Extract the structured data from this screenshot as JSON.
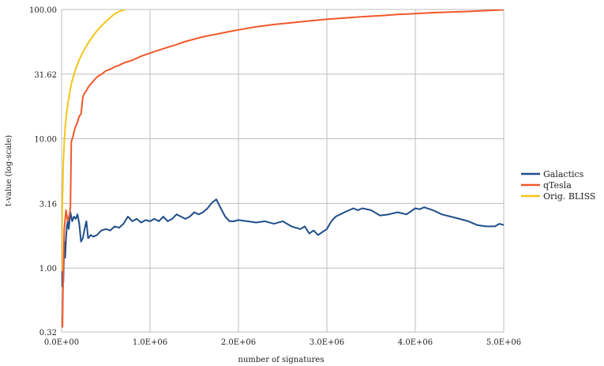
{
  "chart_data": {
    "type": "line",
    "title": "",
    "xlabel": "number of signatures",
    "ylabel": "t-value (log-scale)",
    "xlim": [
      0,
      5000000
    ],
    "ylim": [
      0.32,
      100
    ],
    "yscale": "log",
    "grid": true,
    "legend_position": "right",
    "x_ticks": [
      0,
      1000000,
      2000000,
      3000000,
      4000000,
      5000000
    ],
    "x_tick_labels": [
      "0.0E+00",
      "1.0E+06",
      "2.0E+06",
      "3.0E+06",
      "4.0E+06",
      "5.0E+06"
    ],
    "y_ticks": [
      0.32,
      1.0,
      3.16,
      10.0,
      31.62,
      100.0
    ],
    "y_tick_labels": [
      "0.32",
      "1.00",
      "3.16",
      "10.00",
      "31.62",
      "100.00"
    ],
    "series": [
      {
        "name": "Galactics",
        "color": "#1f4e8c",
        "x": [
          0,
          10000,
          20000,
          30000,
          40000,
          50000,
          60000,
          70000,
          80000,
          100000,
          120000,
          140000,
          160000,
          180000,
          200000,
          220000,
          240000,
          260000,
          280000,
          300000,
          330000,
          360000,
          400000,
          450000,
          500000,
          550000,
          600000,
          650000,
          700000,
          750000,
          800000,
          850000,
          900000,
          950000,
          1000000,
          1050000,
          1100000,
          1150000,
          1200000,
          1250000,
          1300000,
          1350000,
          1400000,
          1450000,
          1500000,
          1550000,
          1600000,
          1650000,
          1700000,
          1750000,
          1800000,
          1850000,
          1900000,
          1950000,
          2000000,
          2100000,
          2200000,
          2300000,
          2400000,
          2500000,
          2600000,
          2700000,
          2750000,
          2800000,
          2850000,
          2900000,
          2950000,
          3000000,
          3050000,
          3100000,
          3200000,
          3300000,
          3350000,
          3400000,
          3500000,
          3600000,
          3700000,
          3800000,
          3900000,
          4000000,
          4050000,
          4100000,
          4200000,
          4300000,
          4400000,
          4500000,
          4600000,
          4700000,
          4800000,
          4900000,
          4950000,
          5000000
        ],
        "y": [
          0.95,
          0.72,
          0.78,
          1.6,
          1.2,
          1.7,
          2.1,
          2.3,
          2.0,
          2.7,
          2.3,
          2.5,
          2.4,
          2.6,
          2.2,
          1.6,
          1.7,
          2.0,
          2.3,
          1.7,
          1.8,
          1.75,
          1.8,
          1.95,
          2.0,
          1.95,
          2.1,
          2.05,
          2.2,
          2.5,
          2.3,
          2.4,
          2.25,
          2.35,
          2.3,
          2.4,
          2.3,
          2.5,
          2.3,
          2.4,
          2.6,
          2.5,
          2.4,
          2.5,
          2.7,
          2.6,
          2.7,
          2.9,
          3.2,
          3.4,
          2.9,
          2.5,
          2.3,
          2.3,
          2.35,
          2.3,
          2.25,
          2.3,
          2.2,
          2.3,
          2.1,
          2.0,
          2.1,
          1.85,
          1.95,
          1.8,
          1.9,
          2.0,
          2.3,
          2.5,
          2.7,
          2.9,
          2.8,
          2.9,
          2.8,
          2.55,
          2.6,
          2.7,
          2.6,
          2.9,
          2.85,
          2.95,
          2.8,
          2.6,
          2.5,
          2.4,
          2.3,
          2.15,
          2.1,
          2.1,
          2.2,
          2.15
        ]
      },
      {
        "name": "qTesla",
        "color": "#f0582a",
        "x": [
          0,
          10000,
          20000,
          30000,
          50000,
          70000,
          90000,
          100000,
          110000,
          130000,
          150000,
          180000,
          200000,
          220000,
          240000,
          260000,
          280000,
          300000,
          330000,
          360000,
          400000,
          450000,
          500000,
          550000,
          600000,
          650000,
          700000,
          750000,
          800000,
          850000,
          900000,
          1000000,
          1100000,
          1200000,
          1300000,
          1400000,
          1500000,
          1600000,
          1700000,
          1800000,
          1900000,
          2000000,
          2200000,
          2400000,
          2600000,
          2800000,
          3000000,
          3200000,
          3400000,
          3600000,
          3800000,
          4000000,
          4200000,
          4400000,
          4600000,
          4800000,
          5000000
        ],
        "y": [
          0.42,
          0.35,
          1.0,
          2.0,
          2.8,
          2.3,
          2.6,
          3.0,
          9.5,
          10.5,
          12.0,
          13.5,
          15.0,
          15.5,
          21.0,
          22.5,
          23.5,
          25.0,
          26.5,
          28.0,
          30.0,
          31.5,
          33.5,
          34.5,
          36.0,
          37.0,
          38.5,
          39.5,
          40.5,
          42.0,
          43.5,
          46.0,
          48.5,
          51.0,
          53.5,
          56.5,
          59.0,
          61.5,
          63.5,
          65.5,
          67.5,
          69.5,
          73.5,
          76.5,
          79.0,
          81.5,
          84.0,
          86.0,
          88.0,
          89.5,
          91.5,
          93.0,
          94.5,
          95.5,
          96.5,
          98.0,
          99.5
        ]
      },
      {
        "name": "Orig. BLISS",
        "color": "#f5c518",
        "x": [
          0,
          5000,
          10000,
          20000,
          30000,
          40000,
          50000,
          70000,
          90000,
          110000,
          140000,
          170000,
          200000,
          250000,
          300000,
          350000,
          400000,
          450000,
          500000,
          550000,
          600000,
          650000,
          700000,
          720000
        ],
        "y": [
          0.95,
          2.0,
          3.5,
          6.5,
          9.5,
          12.0,
          14.5,
          18.5,
          22.5,
          26.5,
          31.5,
          36.0,
          41.0,
          48.0,
          55.0,
          61.5,
          68.5,
          74.5,
          80.5,
          86.5,
          92.5,
          96.5,
          99.5,
          100.0
        ]
      }
    ]
  }
}
